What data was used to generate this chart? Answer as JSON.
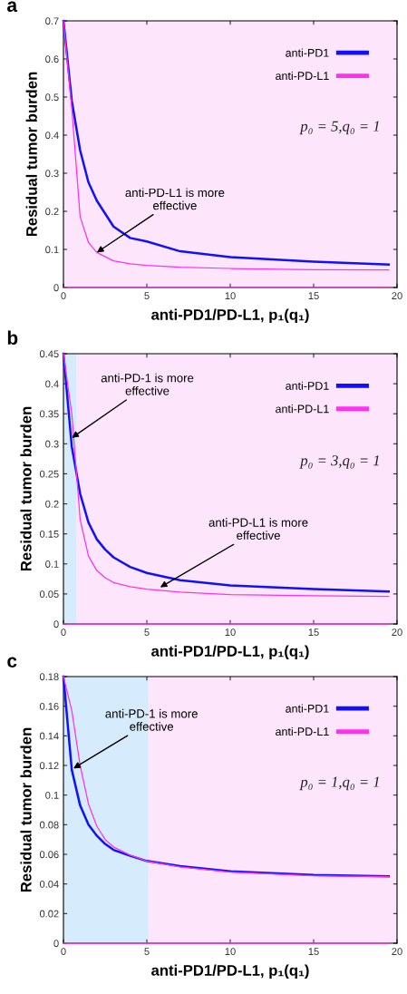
{
  "chart_data": [
    {
      "type": "line",
      "title": "a",
      "xlabel": "anti-PD1/PD-L1, p₁(q₁)",
      "ylabel": "Residual tumor burden",
      "xlim": [
        0,
        20
      ],
      "xticks": [
        0,
        5,
        10,
        15,
        20
      ],
      "ylim": [
        0,
        0.7
      ],
      "yticks": [
        0,
        0.1,
        0.2,
        0.3,
        0.4,
        0.5,
        0.6,
        0.7
      ],
      "legend": "top right",
      "grid": false,
      "marker": "none",
      "line_style": "solid",
      "x": [
        0,
        0.5,
        1,
        1.5,
        2,
        3,
        4,
        5,
        7,
        10,
        15,
        19.5
      ],
      "series": [
        {
          "name": "anti-PD1",
          "color": "#1010ff",
          "values": [
            0.7,
            0.49,
            0.36,
            0.276,
            0.228,
            0.16,
            0.13,
            0.121,
            0.095,
            0.08,
            0.068,
            0.06
          ]
        },
        {
          "name": "anti-PD-L1",
          "color": "#ff30f0",
          "values": [
            0.7,
            0.47,
            0.186,
            0.118,
            0.092,
            0.07,
            0.062,
            0.058,
            0.053,
            0.05,
            0.047,
            0.046
          ]
        },
        {
          "color": "#ff30f0",
          "values": [
            0,
            0,
            0,
            0,
            0,
            0,
            0,
            0,
            0,
            0,
            0,
            0
          ]
        }
      ],
      "bands": [
        {
          "axis": "x",
          "from": 0,
          "to": 20,
          "color": "#fde6fb"
        }
      ],
      "annotations": [
        "p₀ = 5,q₀ = 1",
        {
          "text": "anti-PD-L1 is more\neffective",
          "x": 2,
          "y": 0.092
        }
      ]
    },
    {
      "type": "line",
      "title": "b",
      "xlabel": "anti-PD1/PD-L1, p₁(q₁)",
      "ylabel": "Residual tumor burden",
      "xlim": [
        0,
        20
      ],
      "xticks": [
        0,
        5,
        10,
        15,
        20
      ],
      "ylim": [
        0,
        0.45
      ],
      "yticks": [
        0,
        0.05,
        0.1,
        0.15,
        0.2,
        0.25,
        0.3,
        0.35,
        0.4,
        0.45
      ],
      "legend": "top right",
      "grid": false,
      "marker": "none",
      "line_style": "solid",
      "x": [
        0,
        0.5,
        1,
        1.5,
        2,
        2.5,
        3,
        4,
        5,
        7,
        10,
        15,
        19.5
      ],
      "series": [
        {
          "name": "anti-PD1",
          "color": "#1010ff",
          "values": [
            0.45,
            0.295,
            0.217,
            0.169,
            0.141,
            0.124,
            0.111,
            0.095,
            0.085,
            0.073,
            0.064,
            0.058,
            0.054
          ]
        },
        {
          "name": "anti-PD-L1",
          "color": "#ff30f0",
          "values": [
            0.45,
            0.35,
            0.174,
            0.113,
            0.089,
            0.077,
            0.069,
            0.062,
            0.058,
            0.053,
            0.049,
            0.047,
            0.046
          ]
        },
        {
          "color": "#ff30f0",
          "values": [
            0,
            0,
            0,
            0,
            0,
            0,
            0,
            0,
            0,
            0,
            0,
            0,
            0
          ]
        }
      ],
      "bands": [
        {
          "axis": "x",
          "from": 0,
          "to": 0.8,
          "color": "#d6ebfb"
        },
        {
          "axis": "x",
          "from": 0.8,
          "to": 20,
          "color": "#fde6fb"
        }
      ],
      "annotations": [
        "p₀ = 3,q₀ = 1",
        {
          "text": "anti-PD-1 is more\neffective",
          "x": 0.5,
          "y": 0.31
        },
        {
          "text": "anti-PD-L1 is more\neffective",
          "x": 5.8,
          "y": 0.061
        }
      ]
    },
    {
      "type": "line",
      "title": "c",
      "xlabel": "anti-PD1/PD-L1, p₁(q₁)",
      "ylabel": "Residual tumor burden",
      "xlim": [
        0,
        20
      ],
      "xticks": [
        0,
        5,
        10,
        15,
        20
      ],
      "ylim": [
        0,
        0.18
      ],
      "yticks": [
        0,
        0.02,
        0.04,
        0.06,
        0.08,
        0.1,
        0.12,
        0.14,
        0.16,
        0.18
      ],
      "legend": "top right",
      "grid": false,
      "marker": "none",
      "line_style": "solid",
      "x": [
        0,
        0.5,
        1,
        1.5,
        2,
        2.5,
        3,
        4,
        5,
        7,
        10,
        15,
        19.5
      ],
      "series": [
        {
          "name": "anti-PD1",
          "color": "#1010ff",
          "values": [
            0.18,
            0.117,
            0.093,
            0.08,
            0.0726,
            0.067,
            0.063,
            0.059,
            0.0555,
            0.052,
            0.0485,
            0.046,
            0.0452
          ]
        },
        {
          "name": "anti-PD-L1",
          "color": "#ff30f0",
          "values": [
            0.18,
            0.157,
            0.12,
            0.094,
            0.079,
            0.07,
            0.065,
            0.0595,
            0.0555,
            0.0515,
            0.048,
            0.0455,
            0.045
          ]
        },
        {
          "color": "#ff30f0",
          "values": [
            0,
            0,
            0,
            0,
            0,
            0,
            0,
            0,
            0,
            0,
            0,
            0,
            0
          ]
        }
      ],
      "bands": [
        {
          "axis": "x",
          "from": 0,
          "to": 5.1,
          "color": "#d6ebfb"
        },
        {
          "axis": "x",
          "from": 5.1,
          "to": 20,
          "color": "#fde6fb"
        }
      ],
      "annotations": [
        "p₀ = 1,q₀ = 1",
        {
          "text": "anti-PD-1 is more\neffective",
          "x": 0.6,
          "y": 0.118
        }
      ]
    }
  ]
}
